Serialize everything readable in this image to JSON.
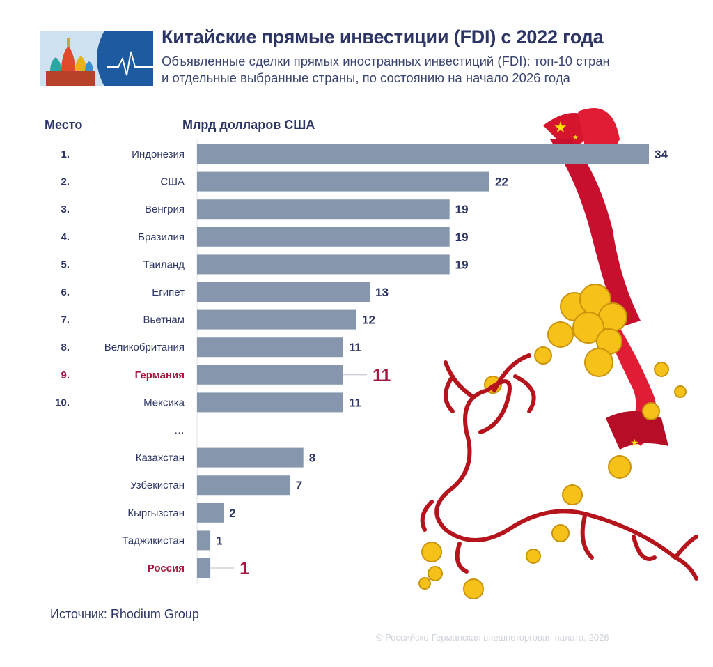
{
  "title": "Китайские прямые инвестиции (FDI) с 2022 года",
  "subtitle_line1": "Объявленные сделки прямых иностранных инвестиций (FDI): топ-10 стран",
  "subtitle_line2": "и отдельные выбранные страны, по состоянию на начало 2026 года",
  "column_rank": "Место",
  "column_unit": "Млрд долларов США",
  "source": "Источник: Rhodium Group",
  "copyright": "© Российско-Германская внешнеторговая палата, 2026",
  "colors": {
    "bar": "#8696ad",
    "text": "#2c3566",
    "highlight": "#a5173e",
    "ribbon": "#d4152d",
    "coin": "#f6c21a",
    "dragon": "#b5141c"
  },
  "chart_data": {
    "type": "bar",
    "orientation": "horizontal",
    "xlim": [
      0,
      34
    ],
    "ellipsis": "…",
    "rows": [
      {
        "rank": "1.",
        "country": "Индонезия",
        "value": 34,
        "label": "34",
        "highlight": false
      },
      {
        "rank": "2.",
        "country": "США",
        "value": 22,
        "label": "22",
        "highlight": false
      },
      {
        "rank": "3.",
        "country": "Венгрия",
        "value": 19,
        "label": "19",
        "highlight": false
      },
      {
        "rank": "4.",
        "country": "Бразилия",
        "value": 19,
        "label": "19",
        "highlight": false
      },
      {
        "rank": "5.",
        "country": "Таиланд",
        "value": 19,
        "label": "19",
        "highlight": false
      },
      {
        "rank": "6.",
        "country": "Египет",
        "value": 13,
        "label": "13",
        "highlight": false
      },
      {
        "rank": "7.",
        "country": "Вьетнам",
        "value": 12,
        "label": "12",
        "highlight": false
      },
      {
        "rank": "8.",
        "country": "Великобритания",
        "value": 11,
        "label": "11",
        "highlight": false
      },
      {
        "rank": "9.",
        "country": "Германия",
        "value": 11,
        "label": "11",
        "highlight": true
      },
      {
        "rank": "10.",
        "country": "Мексика",
        "value": 11,
        "label": "11",
        "highlight": false
      },
      {
        "rank": "",
        "country": "Казахстан",
        "value": 8,
        "label": "8",
        "highlight": false
      },
      {
        "rank": "",
        "country": "Узбекистан",
        "value": 7,
        "label": "7",
        "highlight": false
      },
      {
        "rank": "",
        "country": "Кыргызстан",
        "value": 2,
        "label": "2",
        "highlight": false
      },
      {
        "rank": "",
        "country": "Таджикистан",
        "value": 1,
        "label": "1",
        "highlight": false
      },
      {
        "rank": "",
        "country": "Россия",
        "value": 1,
        "label": "1",
        "highlight": true
      }
    ]
  }
}
